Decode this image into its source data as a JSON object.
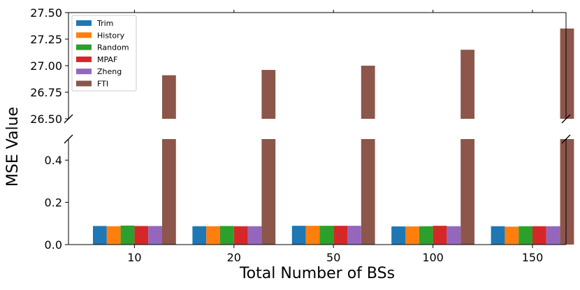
{
  "chart_data": {
    "type": "bar",
    "xlabel": "Total Number of BSs",
    "ylabel": "MSE Value",
    "categories": [
      "10",
      "20",
      "50",
      "100",
      "150"
    ],
    "series": [
      {
        "name": "Trim",
        "color": "#1f77b4",
        "values": [
          0.088,
          0.087,
          0.089,
          0.086,
          0.087
        ]
      },
      {
        "name": "History",
        "color": "#ff7f0e",
        "values": [
          0.087,
          0.087,
          0.089,
          0.086,
          0.085
        ]
      },
      {
        "name": "Random",
        "color": "#2ca02c",
        "values": [
          0.09,
          0.088,
          0.089,
          0.087,
          0.087
        ]
      },
      {
        "name": "MPAF",
        "color": "#d62728",
        "values": [
          0.088,
          0.087,
          0.089,
          0.089,
          0.087
        ]
      },
      {
        "name": "Zheng",
        "color": "#9467bd",
        "values": [
          0.088,
          0.087,
          0.089,
          0.087,
          0.087
        ]
      },
      {
        "name": "FTI",
        "color": "#8c564b",
        "values": [
          26.91,
          26.96,
          27.0,
          27.15,
          27.35
        ]
      }
    ],
    "ylim_lower": [
      0.0,
      0.5
    ],
    "ylim_upper": [
      26.5,
      27.5
    ],
    "yticks_lower": [
      "0.0",
      "0.2",
      "0.4"
    ],
    "yticks_upper": [
      "26.50",
      "26.75",
      "27.00",
      "27.25",
      "27.50"
    ],
    "legend_position": "upper-left",
    "grid": false,
    "broken_axis": true
  }
}
